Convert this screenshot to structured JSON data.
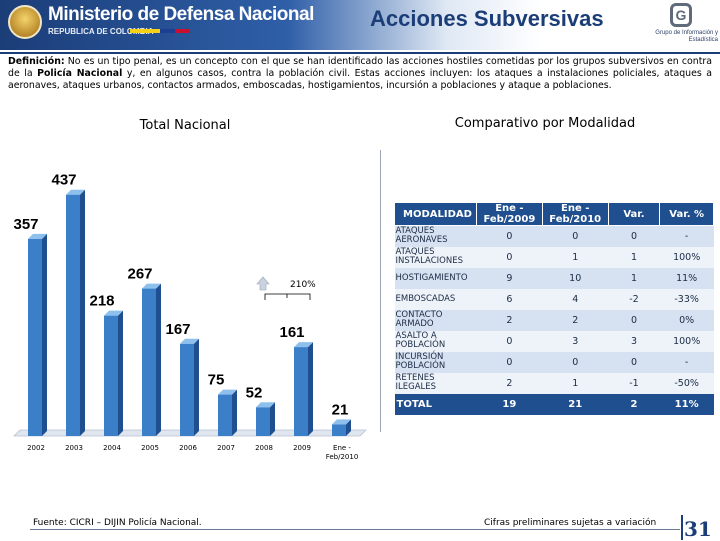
{
  "header": {
    "ministry": "Ministerio de Defensa Nacional",
    "ministry_sub": "REPUBLICA DE COLOMBIA",
    "title": "Acciones Subversivas",
    "logo_letter": "G",
    "grupo": "Grupo de Información y Estadística"
  },
  "definition": {
    "label": "Definición:",
    "text_1": " No es un tipo penal, es un concepto con el que se han identificado las acciones hostiles cometidas por los grupos subversivos en contra de la ",
    "bold_2": "Policía Nacional",
    "text_2": " y, en algunos casos, contra la población civil. Estas acciones incluyen: los ataques a instalaciones policiales, ataques a aeronaves, ataques urbanos, contactos armados, emboscadas, hostigamientos, incursión a poblaciones y ataque a poblaciones."
  },
  "chart_data": {
    "type": "bar",
    "title": "Total Nacional",
    "categories": [
      "2002",
      "2003",
      "2004",
      "2005",
      "2006",
      "2007",
      "2008",
      "2009",
      "Ene - Feb/2010"
    ],
    "values": [
      357,
      437,
      218,
      267,
      167,
      75,
      52,
      161,
      21
    ],
    "annotation": "210%",
    "ylim": [
      0,
      480
    ],
    "grid": false,
    "colors": {
      "bar": "#3a7fc8",
      "bar_side": "#1f4f8f",
      "bar_top": "#8ec0ee",
      "label": "#000000"
    }
  },
  "comparativo": {
    "title": "Comparativo por Modalidad",
    "headers": [
      "MODALIDAD",
      "Ene - Feb/2009",
      "Ene - Feb/2010",
      "Var.",
      "Var. %"
    ],
    "rows": [
      [
        "ATAQUES AERONAVES",
        "0",
        "0",
        "0",
        "-"
      ],
      [
        "ATAQUES INSTALACIONES",
        "0",
        "1",
        "1",
        "100%"
      ],
      [
        "HOSTIGAMIENTO",
        "9",
        "10",
        "1",
        "11%"
      ],
      [
        "EMBOSCADAS",
        "6",
        "4",
        "-2",
        "-33%"
      ],
      [
        "CONTACTO ARMADO",
        "2",
        "2",
        "0",
        "0%"
      ],
      [
        "ASALTO A POBLACIÓN",
        "0",
        "3",
        "3",
        "100%"
      ],
      [
        "INCURSIÓN POBLACIÓN",
        "0",
        "0",
        "0",
        "-"
      ],
      [
        "RETENES ILEGALES",
        "2",
        "1",
        "-1",
        "-50%"
      ]
    ],
    "total": [
      "TOTAL",
      "19",
      "21",
      "2",
      "11%"
    ]
  },
  "footer": {
    "source": "Fuente: CICRI – DIJIN Policía Nacional.",
    "note": "Cifras preliminares sujetas a variación",
    "page": "31"
  }
}
